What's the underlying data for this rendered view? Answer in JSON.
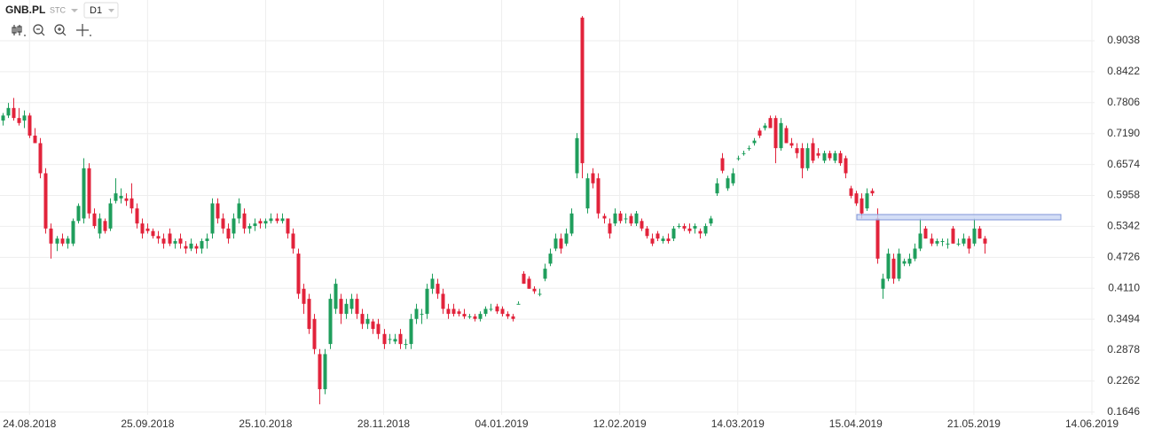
{
  "toolbar": {
    "symbol": "GNB.PL",
    "exchange": "STC",
    "interval": "D1"
  },
  "chart_data": {
    "type": "candlestick",
    "up_color": "#1f9e5c",
    "down_color": "#e2233b",
    "grid": true,
    "ylim": [
      0.159,
      0.985
    ],
    "yticks": [
      0.9038,
      0.8422,
      0.7806,
      {
        "value": 0.719,
        "label": "0.7190"
      },
      0.6574,
      0.5958,
      0.5342,
      0.4726,
      {
        "value": 0.411,
        "label": "0.4110"
      },
      0.3494,
      0.2878,
      0.2262,
      0.1646
    ],
    "xlim": [
      -0.5,
      203.5
    ],
    "xticks": [
      {
        "value": 5,
        "label": "24.08.2018"
      },
      {
        "value": 27,
        "label": "25.09.2018"
      },
      {
        "value": 49,
        "label": "25.10.2018"
      },
      {
        "value": 71,
        "label": "28.11.2018"
      },
      {
        "value": 93,
        "label": "04.01.2019"
      },
      {
        "value": 115,
        "label": "12.02.2019"
      },
      {
        "value": 137,
        "label": "14.03.2019"
      },
      {
        "value": 159,
        "label": "15.04.2019"
      },
      {
        "value": 181,
        "label": "21.05.2019"
      },
      {
        "value": 203,
        "label": "14.06.2019"
      }
    ],
    "ohlc": [
      [
        0.745,
        0.76,
        0.735,
        0.755
      ],
      [
        0.755,
        0.78,
        0.75,
        0.77
      ],
      [
        0.77,
        0.79,
        0.745,
        0.75
      ],
      [
        0.75,
        0.77,
        0.735,
        0.74
      ],
      [
        0.745,
        0.765,
        0.73,
        0.755
      ],
      [
        0.755,
        0.76,
        0.71,
        0.715
      ],
      [
        0.715,
        0.73,
        0.7,
        0.7
      ],
      [
        0.7,
        0.71,
        0.63,
        0.64
      ],
      [
        0.64,
        0.65,
        0.52,
        0.53
      ],
      [
        0.53,
        0.54,
        0.47,
        0.5
      ],
      [
        0.5,
        0.515,
        0.485,
        0.51
      ],
      [
        0.51,
        0.52,
        0.495,
        0.5
      ],
      [
        0.5,
        0.515,
        0.49,
        0.51
      ],
      [
        0.5,
        0.55,
        0.495,
        0.545
      ],
      [
        0.545,
        0.58,
        0.54,
        0.575
      ],
      [
        0.55,
        0.67,
        0.54,
        0.65
      ],
      [
        0.65,
        0.66,
        0.55,
        0.56
      ],
      [
        0.56,
        0.57,
        0.53,
        0.535
      ],
      [
        0.52,
        0.56,
        0.51,
        0.55
      ],
      [
        0.545,
        0.55,
        0.52,
        0.525
      ],
      [
        0.53,
        0.59,
        0.525,
        0.58
      ],
      [
        0.585,
        0.63,
        0.58,
        0.6
      ],
      [
        0.59,
        0.61,
        0.58,
        0.595
      ],
      [
        0.59,
        0.6,
        0.575,
        0.585
      ],
      [
        0.59,
        0.62,
        0.56,
        0.57
      ],
      [
        0.57,
        0.58,
        0.53,
        0.54
      ],
      [
        0.54,
        0.55,
        0.51,
        0.52
      ],
      [
        0.53,
        0.54,
        0.52,
        0.525
      ],
      [
        0.525,
        0.53,
        0.51,
        0.515
      ],
      [
        0.515,
        0.525,
        0.5,
        0.51
      ],
      [
        0.51,
        0.52,
        0.49,
        0.5
      ],
      [
        0.52,
        0.53,
        0.495,
        0.5
      ],
      [
        0.5,
        0.51,
        0.49,
        0.505
      ],
      [
        0.51,
        0.52,
        0.49,
        0.5
      ],
      [
        0.495,
        0.505,
        0.48,
        0.49
      ],
      [
        0.49,
        0.51,
        0.485,
        0.5
      ],
      [
        0.495,
        0.5,
        0.48,
        0.49
      ],
      [
        0.49,
        0.51,
        0.48,
        0.505
      ],
      [
        0.505,
        0.52,
        0.49,
        0.51
      ],
      [
        0.52,
        0.59,
        0.51,
        0.58
      ],
      [
        0.58,
        0.59,
        0.54,
        0.55
      ],
      [
        0.55,
        0.56,
        0.52,
        0.53
      ],
      [
        0.53,
        0.54,
        0.5,
        0.51
      ],
      [
        0.52,
        0.56,
        0.51,
        0.55
      ],
      [
        0.55,
        0.59,
        0.54,
        0.58
      ],
      [
        0.56,
        0.57,
        0.52,
        0.53
      ],
      [
        0.53,
        0.54,
        0.52,
        0.535
      ],
      [
        0.535,
        0.55,
        0.525,
        0.54
      ],
      [
        0.545,
        0.55,
        0.53,
        0.54
      ],
      [
        0.54,
        0.55,
        0.53,
        0.545
      ],
      [
        0.545,
        0.56,
        0.54,
        0.55
      ],
      [
        0.55,
        0.56,
        0.54,
        0.545
      ],
      [
        0.545,
        0.56,
        0.54,
        0.55
      ],
      [
        0.55,
        0.55,
        0.51,
        0.52
      ],
      [
        0.52,
        0.53,
        0.48,
        0.49
      ],
      [
        0.48,
        0.49,
        0.39,
        0.4
      ],
      [
        0.41,
        0.42,
        0.36,
        0.38
      ],
      [
        0.39,
        0.4,
        0.32,
        0.33
      ],
      [
        0.35,
        0.36,
        0.28,
        0.29
      ],
      [
        0.28,
        0.29,
        0.18,
        0.21
      ],
      [
        0.21,
        0.29,
        0.2,
        0.28
      ],
      [
        0.3,
        0.4,
        0.29,
        0.39
      ],
      [
        0.37,
        0.43,
        0.36,
        0.42
      ],
      [
        0.39,
        0.4,
        0.34,
        0.36
      ],
      [
        0.36,
        0.39,
        0.35,
        0.38
      ],
      [
        0.37,
        0.4,
        0.36,
        0.39
      ],
      [
        0.39,
        0.4,
        0.35,
        0.36
      ],
      [
        0.36,
        0.37,
        0.33,
        0.34
      ],
      [
        0.34,
        0.36,
        0.33,
        0.35
      ],
      [
        0.345,
        0.35,
        0.32,
        0.33
      ],
      [
        0.34,
        0.35,
        0.31,
        0.32
      ],
      [
        0.32,
        0.33,
        0.29,
        0.3
      ],
      [
        0.31,
        0.32,
        0.3,
        0.31
      ],
      [
        0.305,
        0.32,
        0.3,
        0.31
      ],
      [
        0.32,
        0.33,
        0.29,
        0.3
      ],
      [
        0.3,
        0.31,
        0.29,
        0.3
      ],
      [
        0.3,
        0.36,
        0.29,
        0.35
      ],
      [
        0.35,
        0.38,
        0.34,
        0.37
      ],
      [
        0.36,
        0.37,
        0.34,
        0.36
      ],
      [
        0.36,
        0.42,
        0.35,
        0.41
      ],
      [
        0.41,
        0.44,
        0.4,
        0.43
      ],
      [
        0.42,
        0.43,
        0.39,
        0.4
      ],
      [
        0.4,
        0.41,
        0.36,
        0.37
      ],
      [
        0.37,
        0.38,
        0.35,
        0.36
      ],
      [
        0.37,
        0.38,
        0.355,
        0.36
      ],
      [
        0.365,
        0.37,
        0.355,
        0.36
      ],
      [
        0.36,
        0.37,
        0.35,
        0.355
      ],
      [
        0.355,
        0.36,
        0.35,
        0.355
      ],
      [
        0.355,
        0.36,
        0.345,
        0.35
      ],
      [
        0.35,
        0.365,
        0.345,
        0.36
      ],
      [
        0.36,
        0.375,
        0.355,
        0.37
      ],
      [
        0.37,
        0.38,
        0.365,
        0.37
      ],
      [
        0.375,
        0.38,
        0.36,
        0.365
      ],
      [
        0.37,
        0.375,
        0.355,
        0.36
      ],
      [
        0.36,
        0.365,
        0.35,
        0.355
      ],
      [
        0.355,
        0.36,
        0.345,
        0.35
      ],
      [
        0.38,
        0.385,
        0.38,
        0.38
      ],
      [
        0.44,
        0.445,
        0.42,
        0.42
      ],
      [
        0.43,
        0.435,
        0.41,
        0.41
      ],
      [
        0.41,
        0.415,
        0.4,
        0.405
      ],
      [
        0.4,
        0.41,
        0.395,
        0.4
      ],
      [
        0.43,
        0.46,
        0.425,
        0.45
      ],
      [
        0.46,
        0.49,
        0.455,
        0.48
      ],
      [
        0.49,
        0.52,
        0.485,
        0.51
      ],
      [
        0.51,
        0.52,
        0.48,
        0.49
      ],
      [
        0.5,
        0.53,
        0.495,
        0.52
      ],
      [
        0.52,
        0.57,
        0.515,
        0.56
      ],
      [
        0.64,
        0.72,
        0.63,
        0.71
      ],
      [
        0.95,
        0.953,
        0.63,
        0.66
      ],
      [
        0.57,
        0.64,
        0.56,
        0.63
      ],
      [
        0.64,
        0.65,
        0.61,
        0.62
      ],
      [
        0.63,
        0.64,
        0.55,
        0.56
      ],
      [
        0.555,
        0.56,
        0.54,
        0.55
      ],
      [
        0.54,
        0.55,
        0.51,
        0.52
      ],
      [
        0.54,
        0.57,
        0.535,
        0.56
      ],
      [
        0.56,
        0.565,
        0.54,
        0.545
      ],
      [
        0.55,
        0.56,
        0.54,
        0.55
      ],
      [
        0.555,
        0.56,
        0.535,
        0.54
      ],
      [
        0.54,
        0.565,
        0.535,
        0.56
      ],
      [
        0.545,
        0.55,
        0.525,
        0.53
      ],
      [
        0.53,
        0.535,
        0.51,
        0.515
      ],
      [
        0.51,
        0.52,
        0.495,
        0.5
      ],
      [
        0.52,
        0.525,
        0.505,
        0.51
      ],
      [
        0.505,
        0.515,
        0.5,
        0.51
      ],
      [
        0.51,
        0.52,
        0.5,
        0.505
      ],
      [
        0.51,
        0.535,
        0.505,
        0.53
      ],
      [
        0.535,
        0.54,
        0.53,
        0.535
      ],
      [
        0.535,
        0.54,
        0.525,
        0.53
      ],
      [
        0.53,
        0.54,
        0.52,
        0.525
      ],
      [
        0.53,
        0.54,
        0.52,
        0.535
      ],
      [
        0.525,
        0.53,
        0.51,
        0.52
      ],
      [
        0.52,
        0.54,
        0.515,
        0.535
      ],
      [
        0.54,
        0.555,
        0.535,
        0.55
      ],
      [
        0.6,
        0.63,
        0.595,
        0.62
      ],
      [
        0.67,
        0.68,
        0.64,
        0.645
      ],
      [
        0.61,
        0.635,
        0.605,
        0.63
      ],
      [
        0.62,
        0.65,
        0.615,
        0.64
      ],
      [
        0.67,
        0.675,
        0.665,
        0.67
      ],
      [
        0.68,
        0.685,
        0.675,
        0.68
      ],
      [
        0.69,
        0.695,
        0.685,
        0.69
      ],
      [
        0.7,
        0.71,
        0.695,
        0.705
      ],
      [
        0.725,
        0.73,
        0.71,
        0.715
      ],
      [
        0.73,
        0.74,
        0.725,
        0.735
      ],
      [
        0.75,
        0.755,
        0.73,
        0.73
      ],
      [
        0.75,
        0.755,
        0.66,
        0.69
      ],
      [
        0.69,
        0.75,
        0.685,
        0.74
      ],
      [
        0.73,
        0.735,
        0.7,
        0.7
      ],
      [
        0.7,
        0.71,
        0.69,
        0.695
      ],
      [
        0.69,
        0.7,
        0.67,
        0.68
      ],
      [
        0.69,
        0.7,
        0.63,
        0.65
      ],
      [
        0.65,
        0.7,
        0.645,
        0.69
      ],
      [
        0.7,
        0.71,
        0.66,
        0.665
      ],
      [
        0.68,
        0.69,
        0.67,
        0.675
      ],
      [
        0.665,
        0.685,
        0.66,
        0.68
      ],
      [
        0.68,
        0.685,
        0.665,
        0.67
      ],
      [
        0.665,
        0.685,
        0.66,
        0.68
      ],
      [
        0.68,
        0.685,
        0.655,
        0.66
      ],
      [
        0.67,
        0.675,
        0.63,
        0.64
      ],
      [
        0.61,
        0.615,
        0.59,
        0.595
      ],
      [
        0.6,
        0.605,
        0.575,
        0.58
      ],
      [
        0.59,
        0.6,
        0.55,
        0.56
      ],
      [
        0.57,
        0.61,
        0.565,
        0.6
      ],
      [
        0.605,
        0.61,
        0.595,
        0.6
      ],
      [
        0.55,
        0.57,
        0.46,
        0.47
      ],
      [
        0.41,
        0.44,
        0.39,
        0.43
      ],
      [
        0.43,
        0.49,
        0.425,
        0.48
      ],
      [
        0.47,
        0.48,
        0.42,
        0.43
      ],
      [
        0.43,
        0.49,
        0.425,
        0.48
      ],
      [
        0.46,
        0.47,
        0.455,
        0.465
      ],
      [
        0.46,
        0.48,
        0.455,
        0.47
      ],
      [
        0.47,
        0.5,
        0.465,
        0.49
      ],
      [
        0.49,
        0.55,
        0.485,
        0.52
      ],
      [
        0.53,
        0.535,
        0.51,
        0.51
      ],
      [
        0.51,
        0.52,
        0.495,
        0.5
      ],
      [
        0.5,
        0.51,
        0.495,
        0.505
      ],
      [
        0.505,
        0.51,
        0.495,
        0.505
      ],
      [
        0.5,
        0.51,
        0.49,
        0.5
      ],
      [
        0.53,
        0.535,
        0.5,
        0.5
      ],
      [
        0.5,
        0.51,
        0.495,
        0.5
      ],
      [
        0.5,
        0.52,
        0.495,
        0.51
      ],
      [
        0.51,
        0.515,
        0.48,
        0.49
      ],
      [
        0.5,
        0.55,
        0.495,
        0.53
      ],
      [
        0.53,
        0.535,
        0.51,
        0.51
      ],
      [
        0.51,
        0.515,
        0.48,
        0.5
      ]
    ]
  }
}
